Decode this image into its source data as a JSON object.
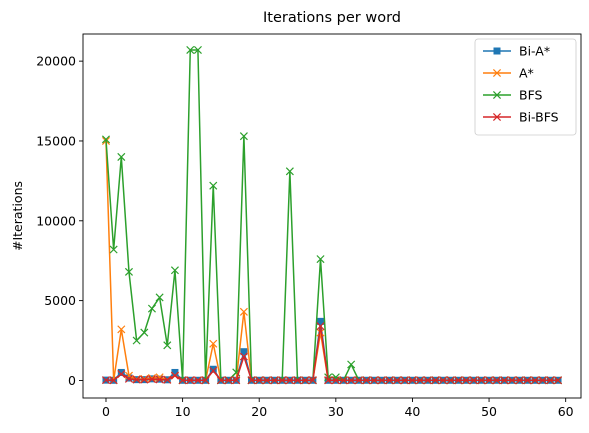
{
  "chart_data": {
    "type": "line",
    "title": "Iterations per word",
    "xlabel": "",
    "ylabel": "#Iterations",
    "xlim": [
      -3,
      62
    ],
    "ylim": [
      -1100,
      21700
    ],
    "xticks": [
      0,
      10,
      20,
      30,
      40,
      50,
      60
    ],
    "yticks": [
      0,
      5000,
      10000,
      15000,
      20000
    ],
    "grid": false,
    "legend_position": "top-right",
    "x": [
      0,
      1,
      2,
      3,
      4,
      5,
      6,
      7,
      8,
      9,
      10,
      11,
      12,
      13,
      14,
      15,
      16,
      17,
      18,
      19,
      20,
      21,
      22,
      23,
      24,
      25,
      26,
      27,
      28,
      29,
      30,
      31,
      32,
      33,
      34,
      35,
      36,
      37,
      38,
      39,
      40,
      41,
      42,
      43,
      44,
      45,
      46,
      47,
      48,
      49,
      50,
      51,
      52,
      53,
      54,
      55,
      56,
      57,
      58,
      59
    ],
    "series": [
      {
        "name": "Bi-A*",
        "color": "#1f77b4",
        "marker": "square",
        "values": [
          20,
          10,
          500,
          150,
          50,
          50,
          100,
          80,
          40,
          500,
          10,
          10,
          10,
          10,
          700,
          10,
          10,
          10,
          1800,
          10,
          10,
          10,
          10,
          10,
          10,
          10,
          10,
          10,
          3700,
          10,
          10,
          10,
          10,
          10,
          10,
          10,
          10,
          10,
          10,
          10,
          10,
          10,
          10,
          10,
          10,
          10,
          10,
          10,
          10,
          10,
          10,
          10,
          10,
          10,
          10,
          10,
          10,
          10,
          10,
          10
        ]
      },
      {
        "name": "A*",
        "color": "#ff7f0e",
        "marker": "x",
        "values": [
          15000,
          10,
          3200,
          300,
          80,
          100,
          150,
          200,
          50,
          300,
          10,
          10,
          10,
          10,
          2300,
          10,
          10,
          10,
          4300,
          10,
          10,
          10,
          10,
          10,
          10,
          10,
          10,
          10,
          3000,
          10,
          10,
          10,
          10,
          10,
          10,
          10,
          10,
          10,
          10,
          10,
          10,
          10,
          10,
          10,
          10,
          10,
          10,
          10,
          10,
          10,
          10,
          10,
          10,
          10,
          10,
          10,
          10,
          10,
          10,
          10
        ]
      },
      {
        "name": "BFS",
        "color": "#2ca02c",
        "marker": "x",
        "values": [
          15100,
          8200,
          14000,
          6800,
          2500,
          3000,
          4500,
          5200,
          2200,
          6900,
          10,
          20700,
          20700,
          10,
          12200,
          10,
          10,
          500,
          15300,
          10,
          10,
          10,
          10,
          10,
          13100,
          10,
          10,
          10,
          7600,
          200,
          200,
          10,
          1000,
          10,
          10,
          10,
          10,
          10,
          10,
          10,
          10,
          10,
          10,
          10,
          10,
          10,
          10,
          10,
          10,
          10,
          10,
          10,
          10,
          10,
          10,
          10,
          10,
          10,
          10,
          10
        ]
      },
      {
        "name": "Bi-BFS",
        "color": "#d62728",
        "marker": "x",
        "values": [
          20,
          10,
          400,
          100,
          50,
          50,
          80,
          60,
          40,
          300,
          10,
          10,
          10,
          10,
          600,
          10,
          10,
          10,
          1500,
          10,
          10,
          10,
          10,
          10,
          10,
          10,
          10,
          10,
          3400,
          10,
          10,
          10,
          10,
          10,
          10,
          10,
          10,
          10,
          10,
          10,
          10,
          10,
          10,
          10,
          10,
          10,
          10,
          10,
          10,
          10,
          10,
          10,
          10,
          10,
          10,
          10,
          10,
          10,
          10,
          10
        ]
      }
    ]
  }
}
